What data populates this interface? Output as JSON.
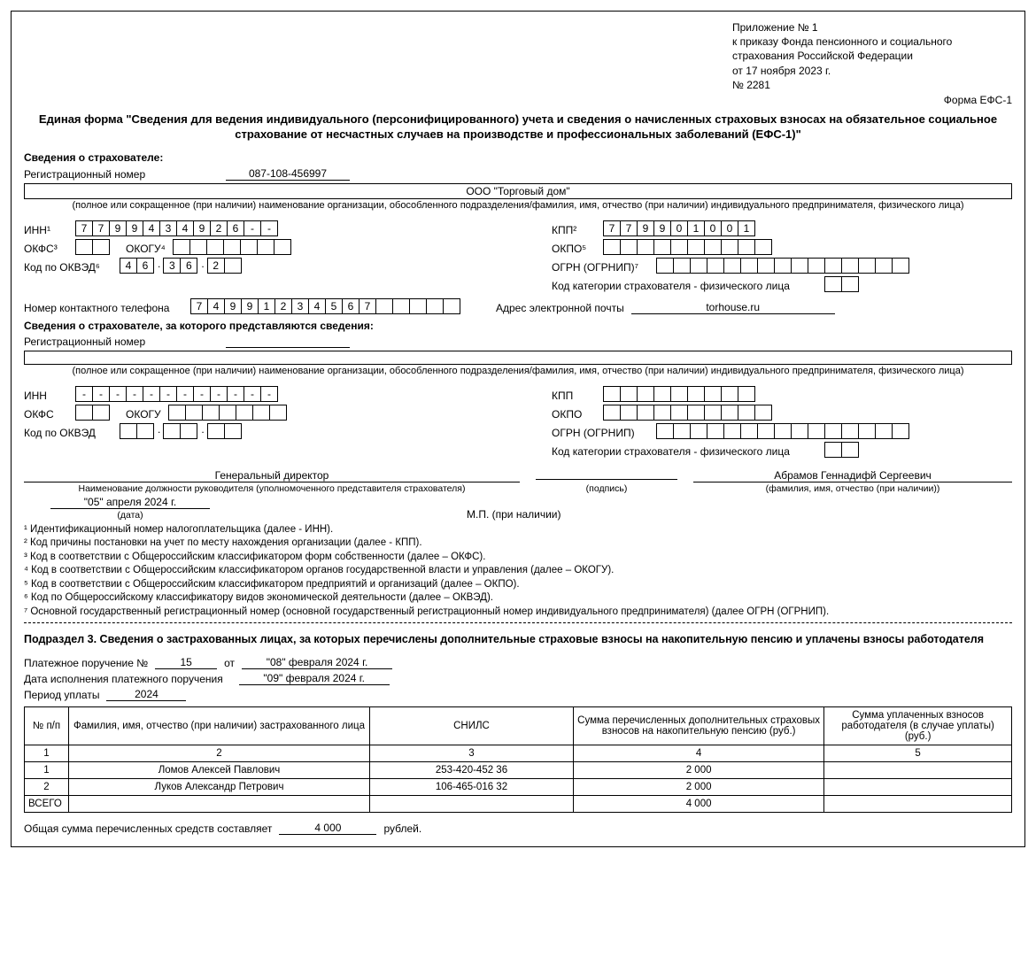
{
  "appendix": {
    "l1": "Приложение № 1",
    "l2": "к приказу Фонда пенсионного и социального",
    "l3": "страхования Российской Федерации",
    "l4": "от 17 ноября 2023 г.",
    "l5": "№ 2281"
  },
  "form_code": "Форма ЕФС-1",
  "title": "Единая форма \"Сведения для ведения индивидуального (персонифицированного) учета и сведения о начисленных страховых взносах на обязательное социальное страхование от несчастных случаев на производстве и профессиональных заболеваний (ЕФС-1)\"",
  "section1_head": "Сведения о страхователе:",
  "reg_num_label": "Регистрационный номер",
  "reg_num_value": "087-108-456997",
  "org_name": "ООО \"Торговый дом\"",
  "org_name_note": "(полное или сокращенное (при наличии) наименование организации, обособленного подразделения/фамилия, имя, отчество (при наличии) индивидуального предпринимателя, физического лица)",
  "labels": {
    "inn": "ИНН¹",
    "kpp": "КПП²",
    "okfs": "ОКФС³",
    "okogu": "ОКОГУ⁴",
    "okpo": "ОКПО⁵",
    "okved": "Код по ОКВЭД⁶",
    "ogrn": "ОГРН (ОГРНИП)⁷",
    "kat": "Код категории страхователя - физического лица",
    "phone": "Номер контактного телефона",
    "email": "Адрес электронной почты",
    "inn2": "ИНН",
    "kpp2": "КПП",
    "okfs2": "ОКФС",
    "okogu2": "ОКОГУ",
    "okpo2": "ОКПО",
    "okved2": "Код по ОКВЭД",
    "ogrn2": "ОГРН (ОГРНИП)",
    "kat2": "Код категории страхователя - физического лица"
  },
  "inn": [
    "7",
    "7",
    "9",
    "9",
    "4",
    "3",
    "4",
    "9",
    "2",
    "6",
    "-",
    "-"
  ],
  "kpp": [
    "7",
    "7",
    "9",
    "9",
    "0",
    "1",
    "0",
    "0",
    "1"
  ],
  "okved": [
    "4",
    "6",
    "",
    "3",
    "6",
    "",
    "2",
    ""
  ],
  "phone": [
    "7",
    "4",
    "9",
    "9",
    "1",
    "2",
    "3",
    "4",
    "5",
    "6",
    "7",
    "",
    "",
    "",
    "",
    ""
  ],
  "email": "torhouse.ru",
  "section2_head": "Сведения о страхователе, за которого представляются сведения:",
  "sign": {
    "position": "Генеральный директор",
    "position_cap": "Наименование должности руководителя (уполномоченного представителя страхователя)",
    "podpis_cap": "(подпись)",
    "fio": "Абрамов Геннадифй Сергеевич",
    "fio_cap": "(фамилия, имя, отчество (при наличии))",
    "date": "\"05\" апреля 2024 г.",
    "date_cap": "(дата)",
    "mp": "М.П. (при наличии)"
  },
  "footnotes": [
    "¹ Идентификационный номер налогоплательщика (далее - ИНН).",
    "² Код причины постановки на учет по месту нахождения организации (далее - КПП).",
    "³ Код в соответствии с Общероссийским классификатором форм собственности (далее – ОКФС).",
    "⁴ Код в соответствии с Общероссийским классификатором органов государственной власти и управления (далее – ОКОГУ).",
    "⁵ Код в соответствии с Общероссийским классификатором предприятий и организаций (далее – ОКПО).",
    "⁶ Код по Общероссийскому классификатору видов экономической деятельности (далее – ОКВЭД).",
    "⁷ Основной государственный регистрационный номер (основной государственный регистрационный номер индивидуального предпринимателя) (далее ОГРН (ОГРНИП)."
  ],
  "sub3": {
    "title": "Подраздел 3. Сведения о застрахованных лицах, за которых перечислены дополнительные страховые взносы на накопительную пенсию и уплачены взносы работодателя",
    "pp_label": "Платежное поручение №",
    "pp_no": "15",
    "ot": "от",
    "pp_date": "\"08\" февраля 2024 г.",
    "exec_label": "Дата исполнения платежного поручения",
    "exec_date": "\"09\" февраля 2024 г.",
    "period_label": "Период уплаты",
    "period": "2024",
    "columns": [
      "№ п/п",
      "Фамилия, имя, отчество (при наличии) застрахованного лица",
      "СНИЛС",
      "Сумма перечисленных дополнительных страховых взносов на накопительную пенсию (руб.)",
      "Сумма уплаченных взносов работодателя (в случае уплаты) (руб.)"
    ],
    "col_nums": [
      "1",
      "2",
      "3",
      "4",
      "5"
    ],
    "rows": [
      {
        "n": "1",
        "fio": "Ломов Алексей Павлович",
        "snils": "253-420-452 36",
        "s1": "2 000",
        "s2": ""
      },
      {
        "n": "2",
        "fio": "Луков Александр Петрович",
        "snils": "106-465-016 32",
        "s1": "2 000",
        "s2": ""
      }
    ],
    "total_label": "ВСЕГО",
    "total_s1": "4 000",
    "total_line_label": "Общая сумма перечисленных средств составляет",
    "total_line_value": "4 000",
    "rub": "рублей."
  }
}
